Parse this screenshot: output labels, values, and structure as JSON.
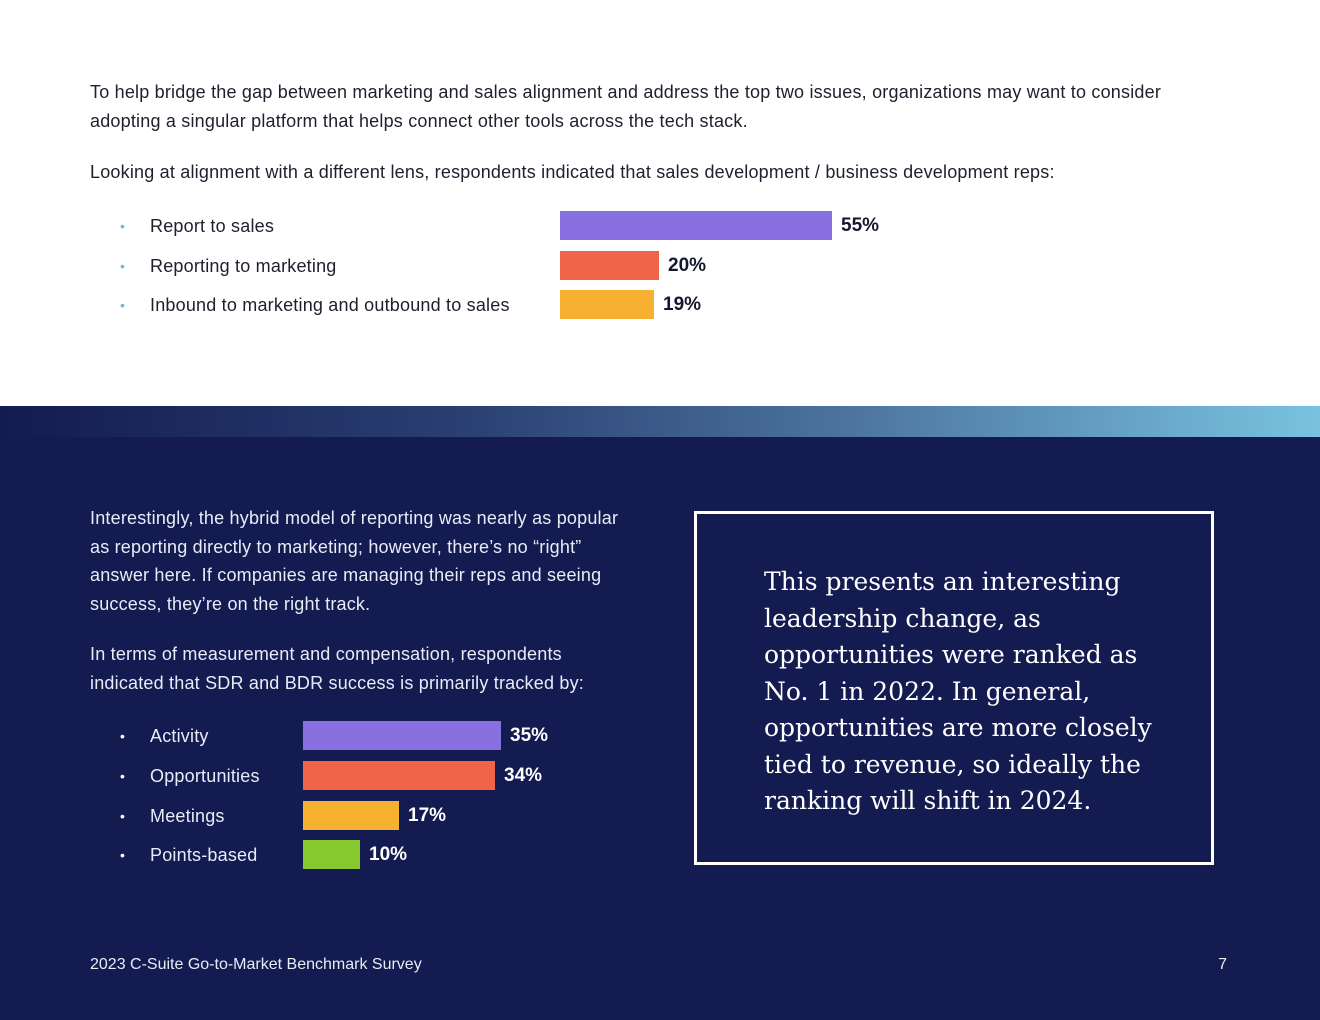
{
  "intro": {
    "paragraph_1": "To help bridge the gap between marketing and sales alignment and address the top two issues, organizations may want to consider adopting a singular platform that helps connect other tools across the tech stack.",
    "paragraph_2": "Looking at alignment with a different lens, respondents indicated that sales development / business development reps:"
  },
  "bottom_section": {
    "paragraph_1": "Interestingly, the hybrid model of reporting was nearly as popular as reporting directly to marketing; however, there’s no “right” answer here. If companies are managing their reps and seeing success, they’re on the right track.",
    "paragraph_2": "In terms of measurement and compensation, respondents indicated that SDR and BDR success is primarily tracked by:"
  },
  "callout": {
    "text": "This presents an interesting leadership change, as opportunities were ranked as No. 1 in 2022. In general, opportunities are more closely tied to revenue, so ideally the ranking will shift in 2024."
  },
  "footer": {
    "title": "2023 C-Suite Go-to-Market Benchmark Survey",
    "page_number": "7"
  },
  "chart_data": [
    {
      "type": "bar",
      "orientation": "horizontal",
      "title": "Sales development / business development reps",
      "categories": [
        "Report to sales",
        "Reporting to marketing",
        "Inbound to marketing and outbound to sales"
      ],
      "values": [
        55,
        20,
        19
      ],
      "value_labels": [
        "55%",
        "20%",
        "19%"
      ],
      "colors": [
        "#8870e0",
        "#f0654a",
        "#f6b032"
      ],
      "xlim": [
        0,
        100
      ],
      "unit": "%"
    },
    {
      "type": "bar",
      "orientation": "horizontal",
      "title": "SDR and BDR success primarily tracked by",
      "categories": [
        "Activity",
        "Opportunities",
        "Meetings",
        "Points-based"
      ],
      "values": [
        35,
        34,
        17,
        10
      ],
      "value_labels": [
        "35%",
        "34%",
        "17%",
        "10%"
      ],
      "colors": [
        "#8870e0",
        "#f0654a",
        "#f6b032",
        "#86c92e"
      ],
      "xlim": [
        0,
        100
      ],
      "unit": "%"
    }
  ]
}
